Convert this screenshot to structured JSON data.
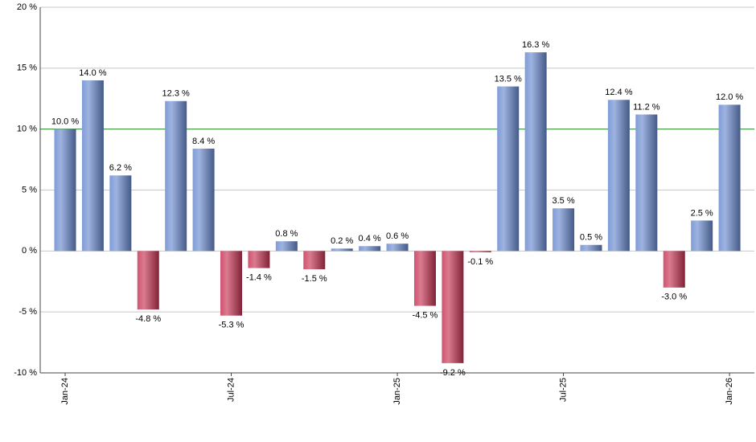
{
  "chart_data": {
    "type": "bar",
    "categories": [
      "Jan-24",
      null,
      null,
      null,
      null,
      null,
      "Jul-24",
      null,
      null,
      null,
      null,
      null,
      "Jan-25",
      null,
      null,
      null,
      null,
      null,
      "Jul-25",
      null,
      null,
      null,
      null,
      null,
      "Jan-26"
    ],
    "values": [
      10.0,
      14.0,
      6.2,
      -4.8,
      12.3,
      8.4,
      -5.3,
      -1.4,
      0.8,
      -1.5,
      0.2,
      0.4,
      0.6,
      -4.5,
      -9.2,
      -0.1,
      13.5,
      16.3,
      3.5,
      0.5,
      12.4,
      11.2,
      -3.0,
      2.5,
      12.0
    ],
    "value_labels": [
      "10.0 %",
      "14.0 %",
      "6.2 %",
      "-4.8 %",
      "12.3 %",
      "8.4 %",
      "-5.3 %",
      "-1.4 %",
      "0.8 %",
      "-1.5 %",
      "0.2 %",
      "0.4 %",
      "0.6 %",
      "-4.5 %",
      "-9.2 %",
      "-0.1 %",
      "13.5 %",
      "16.3 %",
      "3.5 %",
      "0.5 %",
      "12.4 %",
      "11.2 %",
      "-3.0 %",
      "2.5 %",
      "12.0 %"
    ],
    "positive_color": "#6a8ad0",
    "negative_color": "#c83454",
    "ylim": [
      -10,
      20
    ],
    "yticks": [
      {
        "value": -10,
        "label": "-10 %"
      },
      {
        "value": -5,
        "label": "-5 %"
      },
      {
        "value": 0,
        "label": "0 %"
      },
      {
        "value": 5,
        "label": "5 %"
      },
      {
        "value": 10,
        "label": "10 %"
      },
      {
        "value": 15,
        "label": "15 %"
      },
      {
        "value": 20,
        "label": "20 %"
      }
    ],
    "grid": true,
    "reference_line": {
      "value": 10,
      "color": "#2e8b2e"
    }
  }
}
